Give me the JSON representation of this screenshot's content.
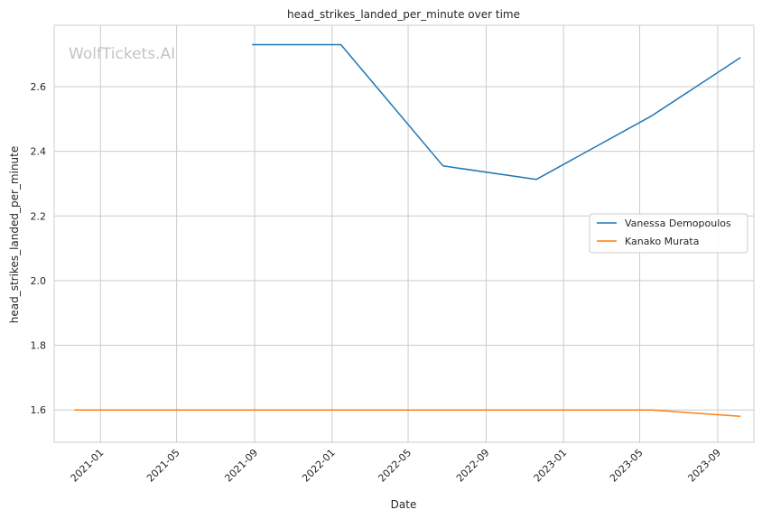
{
  "chart_data": {
    "type": "line",
    "title": "head_strikes_landed_per_minute over time",
    "xlabel": "Date",
    "ylabel": "head_strikes_landed_per_minute",
    "watermark": "WolfTickets.AI",
    "xlim": [
      "2020-10-20",
      "2023-10-28"
    ],
    "ylim": [
      1.5,
      2.79
    ],
    "x_ticks": [
      "2021-01",
      "2021-05",
      "2021-09",
      "2022-01",
      "2022-05",
      "2022-09",
      "2023-01",
      "2023-05",
      "2023-09"
    ],
    "y_ticks": [
      "1.6",
      "1.8",
      "2.0",
      "2.2",
      "2.4",
      "2.6"
    ],
    "grid": true,
    "legend_position": "center-right",
    "series": [
      {
        "name": "Vanessa Demopoulos",
        "color": "#1f77b4",
        "x": [
          "2021-08-28",
          "2022-01-15",
          "2022-06-25",
          "2022-11-19",
          "2023-05-20",
          "2023-10-07"
        ],
        "y": [
          2.73,
          2.73,
          2.355,
          2.313,
          2.51,
          2.69
        ]
      },
      {
        "name": "Kanako Murata",
        "color": "#ff7f0e",
        "x": [
          "2020-11-21",
          "2023-05-20",
          "2023-10-07"
        ],
        "y": [
          1.6,
          1.6,
          1.58
        ]
      }
    ]
  }
}
